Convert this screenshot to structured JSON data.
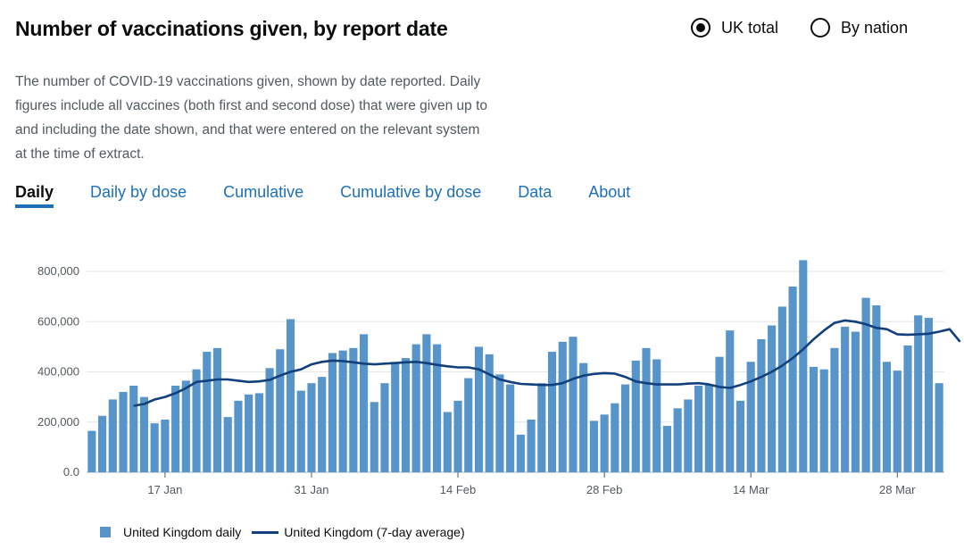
{
  "header": {
    "title": "Number of vaccinations given, by report date"
  },
  "radios": [
    {
      "label": "UK total",
      "checked": true
    },
    {
      "label": "By nation",
      "checked": false
    }
  ],
  "description": "The number of COVID-19 vaccinations given, shown by date reported. Daily figures include all vaccines (both first and second dose) that were given up to and including the date shown, and that were entered on the relevant system at the time of extract.",
  "tabs": [
    {
      "label": "Daily",
      "active": true
    },
    {
      "label": "Daily by dose",
      "active": false
    },
    {
      "label": "Cumulative",
      "active": false
    },
    {
      "label": "Cumulative by dose",
      "active": false
    },
    {
      "label": "Data",
      "active": false
    },
    {
      "label": "About",
      "active": false
    }
  ],
  "colors": {
    "bar": "#5694ca",
    "line": "#12407c",
    "link": "#1d70b8",
    "grid": "#e6e6e6"
  },
  "chart_data": {
    "type": "bar",
    "x_start": "10 Jan",
    "x_ticks": [
      "17 Jan",
      "31 Jan",
      "14 Feb",
      "28 Feb",
      "14 Mar",
      "28 Mar"
    ],
    "y_ticks": [
      "0.0",
      "200,000",
      "400,000",
      "600,000",
      "800,000"
    ],
    "ylim": [
      0,
      850000
    ],
    "grid": true,
    "legend_position": "bottom-left",
    "series": [
      {
        "name": "United Kingdom daily",
        "type": "bar",
        "values": [
          165000,
          225000,
          290000,
          320000,
          345000,
          300000,
          195000,
          210000,
          345000,
          365000,
          410000,
          480000,
          495000,
          220000,
          285000,
          310000,
          315000,
          415000,
          490000,
          610000,
          325000,
          355000,
          380000,
          475000,
          485000,
          495000,
          550000,
          280000,
          355000,
          440000,
          455000,
          510000,
          550000,
          510000,
          240000,
          285000,
          375000,
          500000,
          470000,
          390000,
          350000,
          150000,
          210000,
          355000,
          480000,
          520000,
          540000,
          435000,
          205000,
          230000,
          275000,
          350000,
          445000,
          495000,
          450000,
          185000,
          255000,
          290000,
          345000,
          350000,
          460000,
          565000,
          285000,
          440000,
          530000,
          585000,
          660000,
          740000,
          845000,
          420000,
          410000,
          495000,
          580000,
          560000,
          695000,
          665000,
          440000,
          405000,
          505000,
          625000,
          615000,
          355000
        ]
      },
      {
        "name": "United Kingdom (7-day average)",
        "type": "line",
        "start_index": 4,
        "values": [
          265000,
          272000,
          290000,
          300000,
          315000,
          335000,
          360000,
          365000,
          370000,
          370000,
          365000,
          360000,
          362000,
          368000,
          385000,
          400000,
          410000,
          430000,
          440000,
          445000,
          443000,
          438000,
          433000,
          430000,
          433000,
          435000,
          438000,
          440000,
          435000,
          428000,
          422000,
          418000,
          418000,
          410000,
          390000,
          370000,
          360000,
          352000,
          350000,
          348000,
          348000,
          355000,
          372000,
          385000,
          392000,
          395000,
          393000,
          380000,
          362000,
          355000,
          350000,
          350000,
          350000,
          353000,
          355000,
          350000,
          340000,
          336000,
          348000,
          362000,
          380000,
          400000,
          425000,
          455000,
          490000,
          530000,
          565000,
          595000,
          605000,
          600000,
          590000,
          575000,
          570000,
          550000,
          548000,
          550000,
          552000,
          560000,
          570000,
          520000
        ]
      }
    ]
  }
}
